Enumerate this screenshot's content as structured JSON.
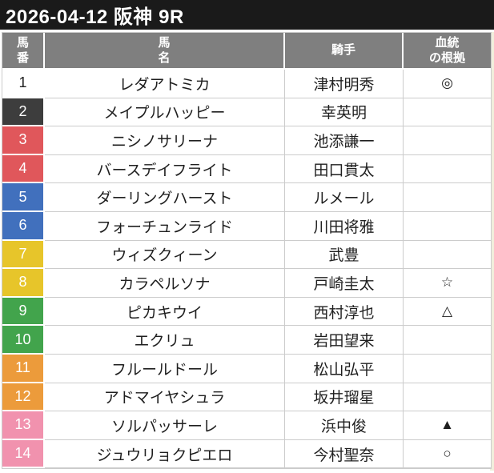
{
  "title_bar": {
    "title": "2026-04-12 阪神 9R"
  },
  "table": {
    "headers": {
      "number": [
        "馬",
        "番"
      ],
      "name": [
        "馬",
        "名"
      ],
      "jockey": [
        "騎手"
      ],
      "mark": [
        "血統",
        "の根拠"
      ]
    },
    "rows": [
      {
        "number": "1",
        "name": "レダアトミカ",
        "jockey": "津村明秀",
        "mark": "◎",
        "frame_color": "#ffffff",
        "number_text_color": "#1f1f1f",
        "badge_style": "background-color:#ffffff;color:#1f1f1f"
      },
      {
        "number": "2",
        "name": "メイプルハッピー",
        "jockey": "幸英明",
        "mark": "",
        "frame_color": "#3d3d3d",
        "number_text_color": "#ffffff",
        "badge_style": "background-color:#3d3d3d;color:#ffffff"
      },
      {
        "number": "3",
        "name": "ニシノサリーナ",
        "jockey": "池添謙一",
        "mark": "",
        "frame_color": "#e0575b",
        "number_text_color": "#ffffff",
        "badge_style": "background-color:#e0575b;color:#ffffff"
      },
      {
        "number": "4",
        "name": "バースデイフライト",
        "jockey": "田口貫太",
        "mark": "",
        "frame_color": "#e0575b",
        "number_text_color": "#ffffff",
        "badge_style": "background-color:#e0575b;color:#ffffff"
      },
      {
        "number": "5",
        "name": "ダーリングハースト",
        "jockey": "ルメール",
        "mark": "",
        "frame_color": "#4170bd",
        "number_text_color": "#ffffff",
        "badge_style": "background-color:#4170bd;color:#ffffff"
      },
      {
        "number": "6",
        "name": "フォーチュンライド",
        "jockey": "川田将雅",
        "mark": "",
        "frame_color": "#4170bd",
        "number_text_color": "#ffffff",
        "badge_style": "background-color:#4170bd;color:#ffffff"
      },
      {
        "number": "7",
        "name": "ウィズクィーン",
        "jockey": "武豊",
        "mark": "",
        "frame_color": "#e7c52a",
        "number_text_color": "#ffffff",
        "badge_style": "background-color:#e7c52a;color:#ffffff"
      },
      {
        "number": "8",
        "name": "カラペルソナ",
        "jockey": "戸崎圭太",
        "mark": "☆",
        "frame_color": "#e7c52a",
        "number_text_color": "#ffffff",
        "badge_style": "background-color:#e7c52a;color:#ffffff"
      },
      {
        "number": "9",
        "name": "ピカキウイ",
        "jockey": "西村淳也",
        "mark": "△",
        "frame_color": "#42a44c",
        "number_text_color": "#ffffff",
        "badge_style": "background-color:#42a44c;color:#ffffff"
      },
      {
        "number": "10",
        "name": "エクリュ",
        "jockey": "岩田望来",
        "mark": "",
        "frame_color": "#42a44c",
        "number_text_color": "#ffffff",
        "badge_style": "background-color:#42a44c;color:#ffffff"
      },
      {
        "number": "11",
        "name": "フルールドール",
        "jockey": "松山弘平",
        "mark": "",
        "frame_color": "#ec9b3b",
        "number_text_color": "#ffffff",
        "badge_style": "background-color:#ec9b3b;color:#ffffff"
      },
      {
        "number": "12",
        "name": "アドマイヤシュラ",
        "jockey": "坂井瑠星",
        "mark": "",
        "frame_color": "#ec9b3b",
        "number_text_color": "#ffffff",
        "badge_style": "background-color:#ec9b3b;color:#ffffff"
      },
      {
        "number": "13",
        "name": "ソルパッサーレ",
        "jockey": "浜中俊",
        "mark": "▲",
        "frame_color": "#f192ae",
        "number_text_color": "#ffffff",
        "badge_style": "background-color:#f192ae;color:#ffffff"
      },
      {
        "number": "14",
        "name": "ジュウリョクピエロ",
        "jockey": "今村聖奈",
        "mark": "○",
        "frame_color": "#f192ae",
        "number_text_color": "#ffffff",
        "badge_style": "background-color:#f192ae;color:#ffffff"
      }
    ]
  },
  "colors": {
    "title_bar_bg": "#1a1a1a",
    "header_bg": "#7f7f7f",
    "grid_border": "#cccccc",
    "page_edge_strip": "#f1efdc"
  }
}
